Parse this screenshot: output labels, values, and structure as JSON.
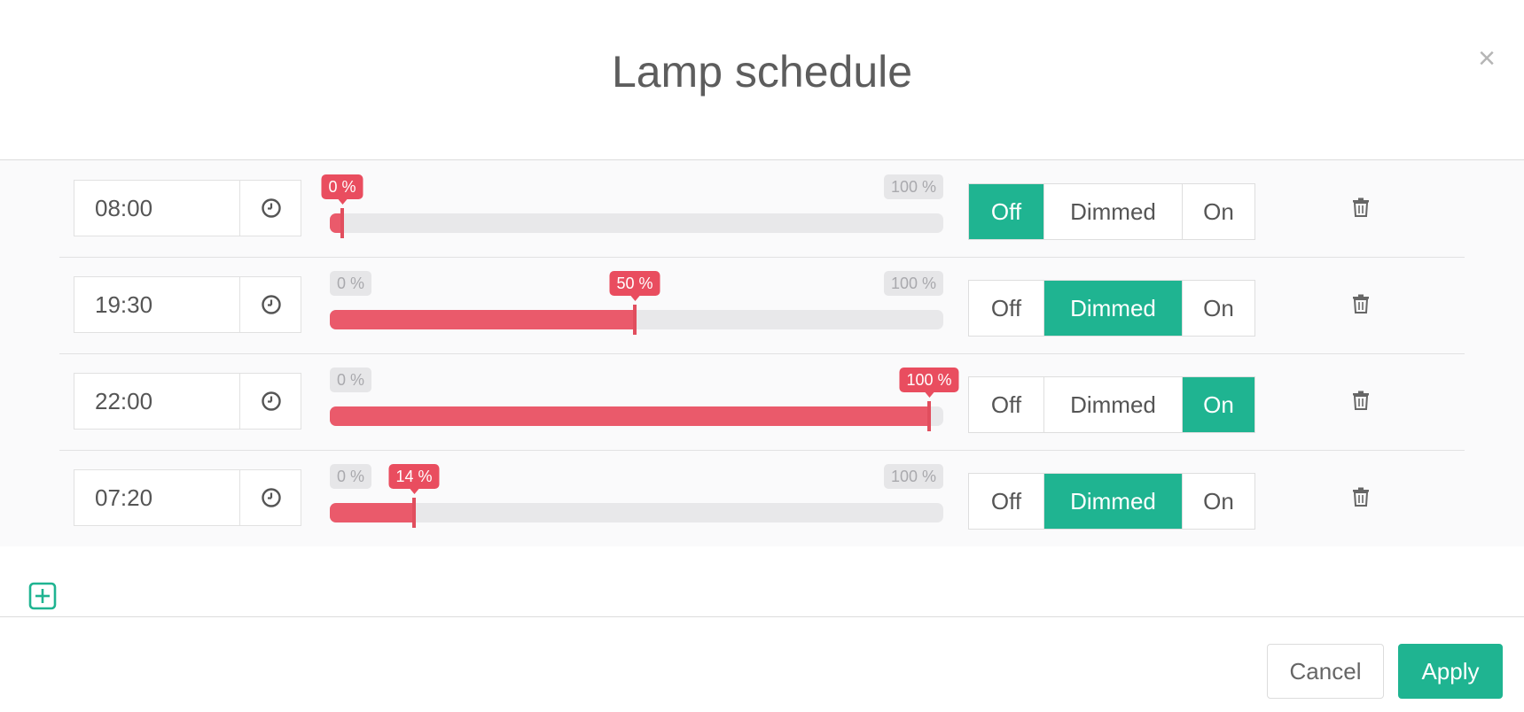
{
  "dialog": {
    "title": "Lamp schedule",
    "close_label": "×"
  },
  "colors": {
    "accent": "#1fb491",
    "slider_fill": "#ea5a6b",
    "slider_track": "#e8e8ea"
  },
  "icons": {
    "close": "close-icon",
    "clock": "clock-icon",
    "trash": "trash-icon",
    "add": "plus-square-icon"
  },
  "slider_range": {
    "min_label": "0 %",
    "max_label": "100 %"
  },
  "schedule": [
    {
      "time": "08:00",
      "level_percent": 0,
      "level_label": "0 %",
      "mode": "Off",
      "modes": [
        "Off",
        "Dimmed",
        "On"
      ]
    },
    {
      "time": "19:30",
      "level_percent": 50,
      "level_label": "50 %",
      "mode": "Dimmed",
      "modes": [
        "Off",
        "Dimmed",
        "On"
      ]
    },
    {
      "time": "22:00",
      "level_percent": 100,
      "level_label": "100 %",
      "mode": "On",
      "modes": [
        "Off",
        "Dimmed",
        "On"
      ]
    },
    {
      "time": "07:20",
      "level_percent": 14,
      "level_label": "14 %",
      "mode": "Dimmed",
      "modes": [
        "Off",
        "Dimmed",
        "On"
      ]
    }
  ],
  "footer": {
    "cancel_label": "Cancel",
    "apply_label": "Apply"
  }
}
